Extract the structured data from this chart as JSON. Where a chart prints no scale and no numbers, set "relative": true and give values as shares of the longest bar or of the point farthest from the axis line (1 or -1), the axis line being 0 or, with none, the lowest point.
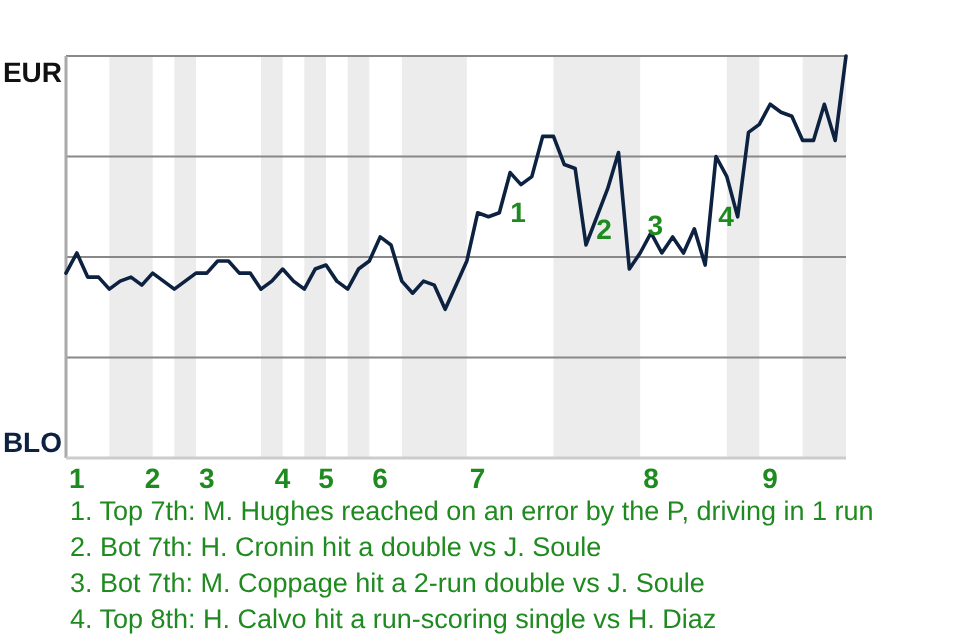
{
  "chart_data": {
    "type": "line",
    "relative": true,
    "categories": [
      null,
      "1",
      null,
      null,
      null,
      null,
      null,
      null,
      "2",
      null,
      null,
      null,
      null,
      "3",
      null,
      null,
      null,
      null,
      null,
      null,
      "4",
      null,
      null,
      null,
      "5",
      null,
      null,
      null,
      null,
      "6",
      null,
      null,
      null,
      null,
      null,
      null,
      null,
      null,
      "7",
      null,
      null,
      null,
      null,
      null,
      null,
      null,
      null,
      null,
      null,
      null,
      null,
      null,
      null,
      null,
      "8",
      null,
      null,
      null,
      null,
      null,
      null,
      null,
      null,
      null,
      null,
      "9",
      null,
      null,
      null,
      null,
      null,
      null,
      null
    ],
    "marker": "none",
    "line_style": "solid",
    "ref_lines": [
      {
        "axis": "y",
        "value": 0.25,
        "color": "#888888"
      },
      {
        "axis": "y",
        "value": 0.5,
        "color": "#888888"
      },
      {
        "axis": "y",
        "value": 0.75,
        "color": "#888888"
      },
      {
        "axis": "y",
        "value": 1,
        "color": "#888888"
      }
    ],
    "series": [
      {
        "color": "#0d2240",
        "values": [
          0.46,
          0.51,
          0.45,
          0.45,
          0.42,
          0.44,
          0.45,
          0.43,
          0.46,
          0.44,
          0.42,
          0.44,
          0.46,
          0.46,
          0.49,
          0.49,
          0.46,
          0.46,
          0.42,
          0.44,
          0.47,
          0.44,
          0.42,
          0.47,
          0.48,
          0.44,
          0.42,
          0.47,
          0.49,
          0.55,
          0.53,
          0.44,
          0.41,
          0.44,
          0.43,
          0.37,
          0.43,
          0.49,
          0.61,
          0.6,
          0.61,
          0.71,
          0.68,
          0.7,
          0.8,
          0.8,
          0.73,
          0.72,
          0.53,
          0.6,
          0.67,
          0.76,
          0.47,
          0.51,
          0.56,
          0.51,
          0.55,
          0.51,
          0.57,
          0.48,
          0.75,
          0.7,
          0.6,
          0.81,
          0.83,
          0.88,
          0.86,
          0.85,
          0.79,
          0.79,
          0.88,
          0.79,
          1
        ]
      }
    ],
    "annotations": [
      "EUR",
      "BLO",
      "1",
      "2",
      "3",
      "4",
      "1. Top 7th: M. Hughes reached on an error by the P, driving in 1 run",
      "2. Bot 7th: H. Cronin hit a double vs J. Soule",
      "3. Bot 7th: M. Coppage hit a 2-run double vs J. Soule",
      "4. Top 8th: H. Calvo hit a run-scoring single vs H. Diaz"
    ]
  }
}
